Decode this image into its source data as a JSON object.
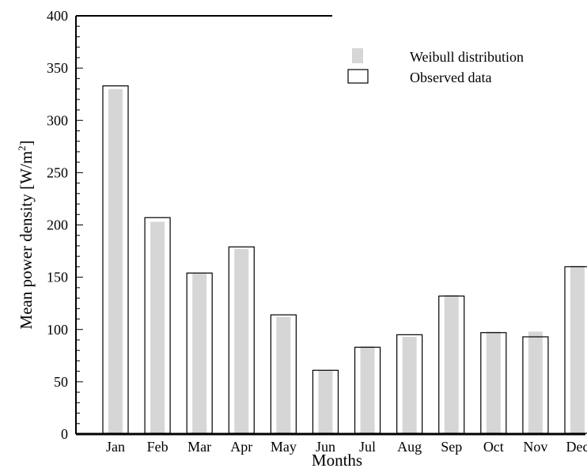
{
  "colors": {
    "weibull_fill": "#d6d6d6",
    "observed_stroke": "#000000",
    "background": "#ffffff"
  },
  "chart_data": {
    "type": "bar",
    "xlabel": "Months",
    "ylabel": "Mean power density [W/m",
    "ylabel_sup": "2",
    "ylabel_close": "]",
    "ylim": [
      0,
      400
    ],
    "yticks": [
      0,
      50,
      100,
      150,
      200,
      250,
      300,
      350,
      400
    ],
    "ytick_labels": [
      "0",
      "50",
      "100",
      "150",
      "200",
      "250",
      "300",
      "350",
      "400"
    ],
    "y_minor_step": 10,
    "categories": [
      "Jan",
      "Feb",
      "Mar",
      "Apr",
      "May",
      "Jun",
      "Jul",
      "Aug",
      "Sep",
      "Oct",
      "Nov",
      "Dec"
    ],
    "series": [
      {
        "name": "Weibull distribution",
        "style": "filled",
        "values": [
          330,
          203,
          154,
          177,
          112,
          61,
          84,
          93,
          133,
          98,
          98,
          161
        ]
      },
      {
        "name": "Observed data",
        "style": "outline",
        "values": [
          333,
          207,
          154,
          179,
          114,
          61,
          83,
          95,
          132,
          97,
          93,
          160
        ]
      }
    ],
    "legend_position": "top-right",
    "grid": false
  }
}
